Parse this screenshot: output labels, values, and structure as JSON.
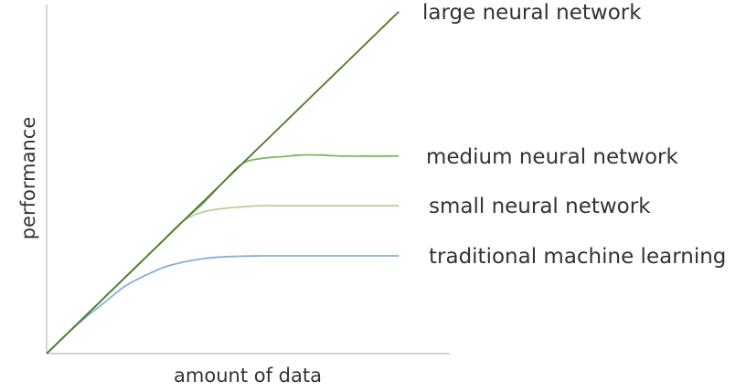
{
  "chart_data": {
    "type": "line",
    "title": "",
    "xlabel": "amount of data",
    "ylabel": "performance",
    "xlim": [
      0,
      10
    ],
    "ylim": [
      0,
      10
    ],
    "grid": false,
    "legend": "labels at line ends (right)",
    "x": [
      0,
      0.5,
      1,
      1.5,
      2,
      2.5,
      3,
      3.5,
      4,
      4.5,
      5,
      5.5,
      6,
      6.5,
      7,
      7.5,
      8,
      8.5,
      9
    ],
    "series": [
      {
        "name": "large neural network",
        "color": "#4e7a2e",
        "values": [
          0,
          0.55,
          1.1,
          1.65,
          2.2,
          2.75,
          3.3,
          3.85,
          4.4,
          4.95,
          5.5,
          6.05,
          6.6,
          7.15,
          7.7,
          8.25,
          8.8,
          9.35,
          9.9
        ]
      },
      {
        "name": "medium neural network",
        "color": "#7cb85a",
        "values": [
          0,
          0.55,
          1.1,
          1.65,
          2.2,
          2.75,
          3.3,
          3.85,
          4.35,
          4.95,
          5.5,
          5.65,
          5.7,
          5.75,
          5.75,
          5.72,
          5.72,
          5.72,
          5.72
        ]
      },
      {
        "name": "small neural network",
        "color": "#b4d49a",
        "values": [
          0,
          0.55,
          1.1,
          1.65,
          2.2,
          2.75,
          3.3,
          3.85,
          4.1,
          4.2,
          4.25,
          4.28,
          4.28,
          4.28,
          4.28,
          4.28,
          4.28,
          4.28,
          4.28
        ]
      },
      {
        "name": "traditional machine learning",
        "color": "#86aedb",
        "values": [
          0,
          0.55,
          1.05,
          1.5,
          1.95,
          2.25,
          2.5,
          2.65,
          2.75,
          2.8,
          2.82,
          2.83,
          2.83,
          2.83,
          2.83,
          2.83,
          2.83,
          2.83,
          2.83
        ]
      }
    ]
  },
  "colors": {
    "axis": "#bbbbbb",
    "text": "#333333"
  }
}
